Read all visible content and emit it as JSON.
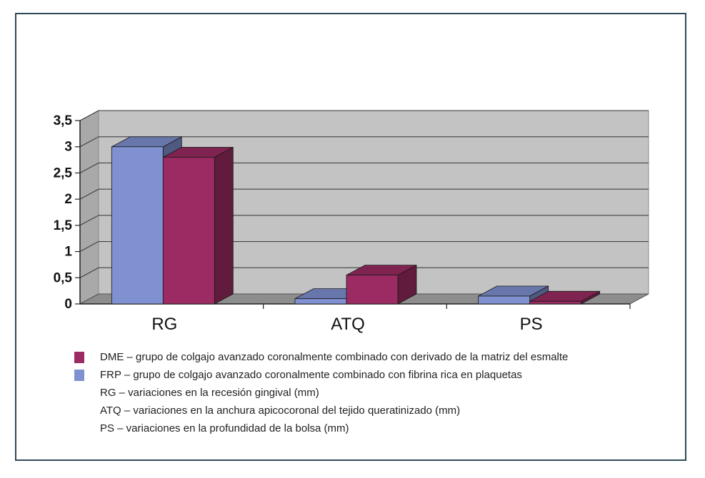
{
  "chart_data": {
    "type": "bar",
    "categories": [
      "RG",
      "ATQ",
      "PS"
    ],
    "series": [
      {
        "name": "FRP",
        "values": [
          3.0,
          0.1,
          0.15
        ],
        "color": "#7f91d0"
      },
      {
        "name": "DME",
        "values": [
          2.8,
          0.55,
          0.05
        ],
        "color": "#9b2b62"
      }
    ],
    "y_ticks": [
      "0",
      "0,5",
      "1",
      "1,5",
      "2",
      "2,5",
      "3",
      "3,5"
    ],
    "ylim": [
      0,
      3.5
    ],
    "grid": true,
    "legend_position": "bottom",
    "legend": [
      {
        "swatch": "#9b2b62",
        "text": "DME – grupo de colgajo avanzado coronalmente combinado con derivado de la matriz del esmalte"
      },
      {
        "swatch": "#7f91d0",
        "text": "FRP – grupo de colgajo avanzado coronalmente combinado con fibrina rica en plaquetas"
      },
      {
        "swatch": "",
        "text": "RG – variaciones en la recesión gingival (mm)"
      },
      {
        "swatch": "",
        "text": "ATQ – variaciones en la anchura apicocoronal del tejido queratinizado (mm)"
      },
      {
        "swatch": "",
        "text": "PS – variaciones en la profundidad de la bolsa (mm)"
      }
    ]
  }
}
